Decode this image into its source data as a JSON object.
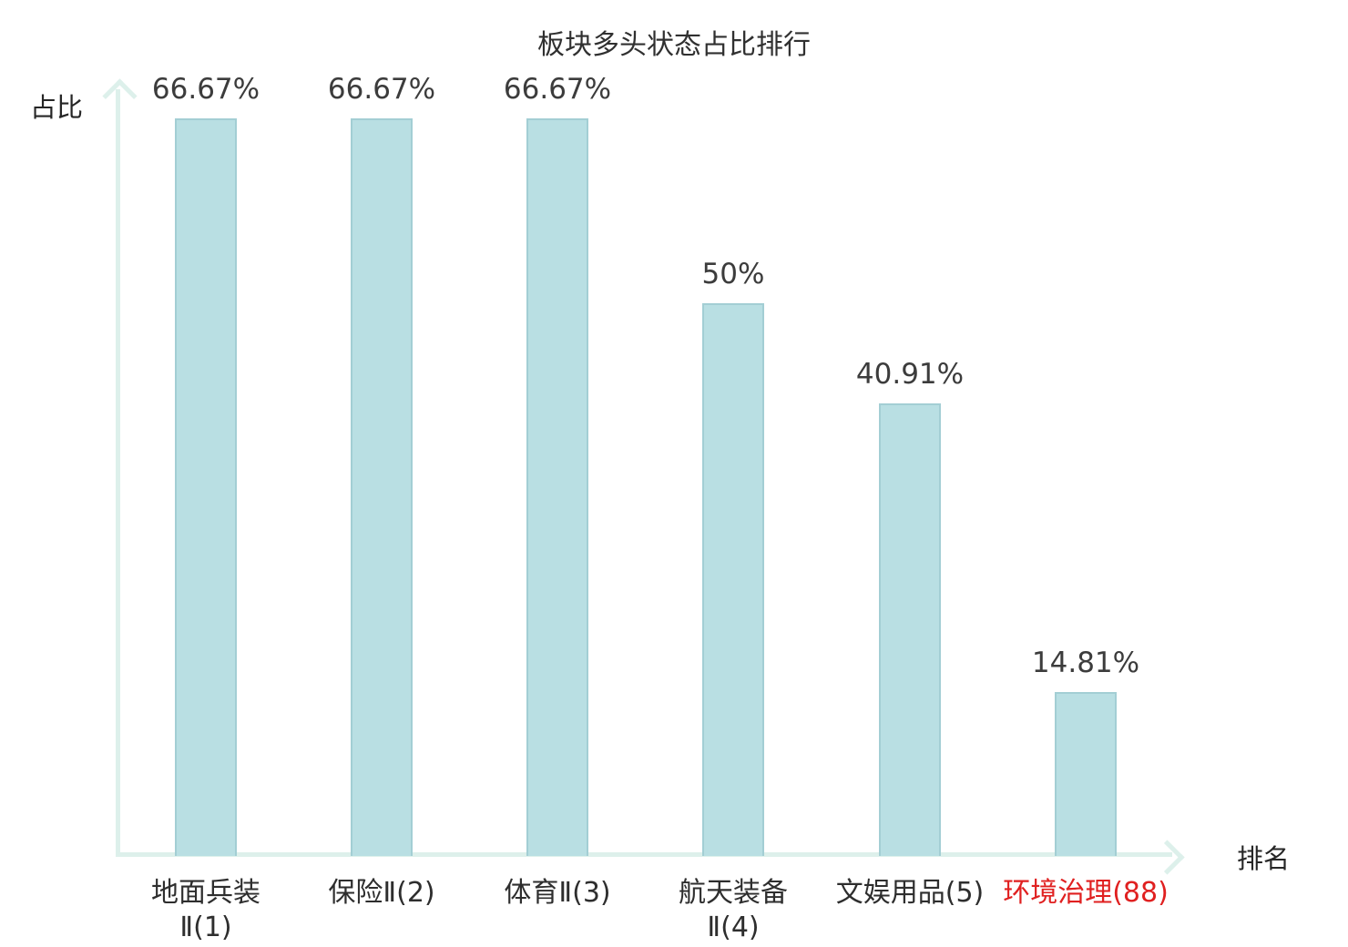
{
  "chart_data": {
    "type": "bar",
    "title": "板块多头状态占比排行",
    "ylabel": "占比",
    "xlabel": "排名",
    "categories": [
      "地面兵装\nⅡ(1)",
      "保险Ⅱ(2)",
      "体育Ⅱ(3)",
      "航天装备\nⅡ(4)",
      "文娱用品(5)",
      "环境治理(88)"
    ],
    "values": [
      66.67,
      66.67,
      66.67,
      50,
      40.91,
      14.81
    ],
    "value_labels": [
      "66.67%",
      "66.67%",
      "66.67%",
      "50%",
      "40.91%",
      "14.81%"
    ],
    "highlight_index": 5,
    "ylim": [
      0,
      70
    ],
    "grid": false,
    "legend": "none",
    "colors": {
      "bar_fill": "#b9dfe3",
      "bar_border": "#a3ced4",
      "axis": "#ddf0eb",
      "text": "#3a3a3a",
      "highlight_text": "#e02020",
      "background": "#ffffff"
    }
  }
}
